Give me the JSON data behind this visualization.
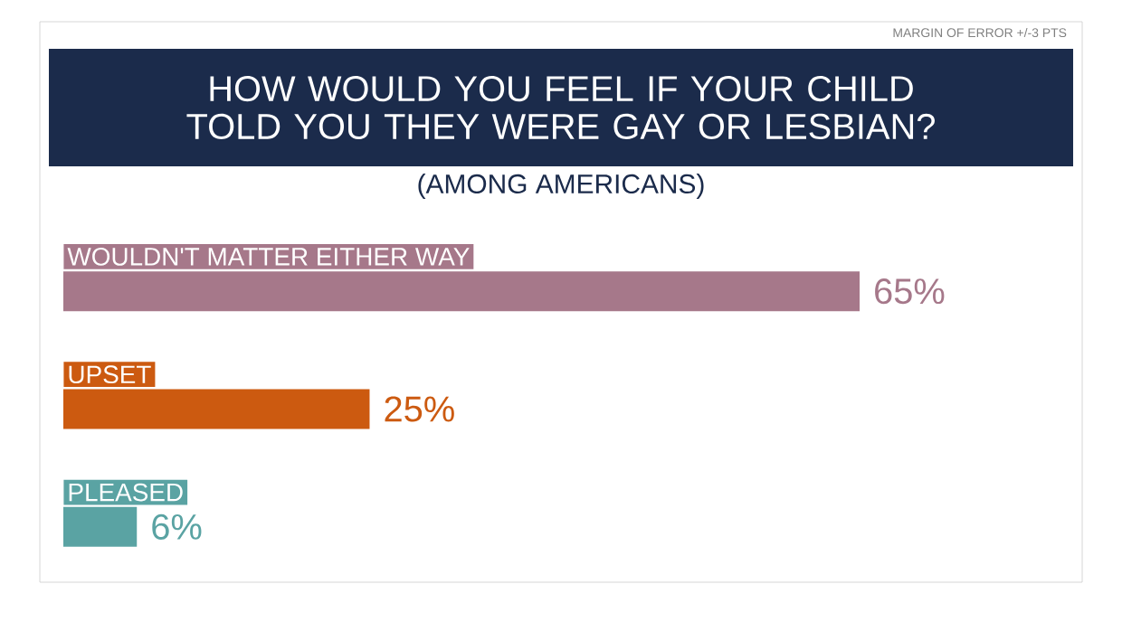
{
  "chart_data": {
    "type": "bar",
    "orientation": "horizontal",
    "title": "HOW WOULD YOU FEEL IF YOUR CHILD TOLD YOU THEY WERE GAY OR LESBIAN?",
    "subtitle": "(AMONG AMERICANS)",
    "annotations": [
      "MARGIN OF ERROR +/-3 PTS"
    ],
    "categories": [
      "WOULDN'T MATTER EITHER WAY",
      "UPSET",
      "PLEASED"
    ],
    "values": [
      65,
      25,
      6
    ],
    "colors": [
      "#a6788a",
      "#cc5a10",
      "#5aa3a3"
    ],
    "value_labels": [
      "65%",
      "25%",
      "6%"
    ],
    "xlim": [
      0,
      65
    ]
  }
}
